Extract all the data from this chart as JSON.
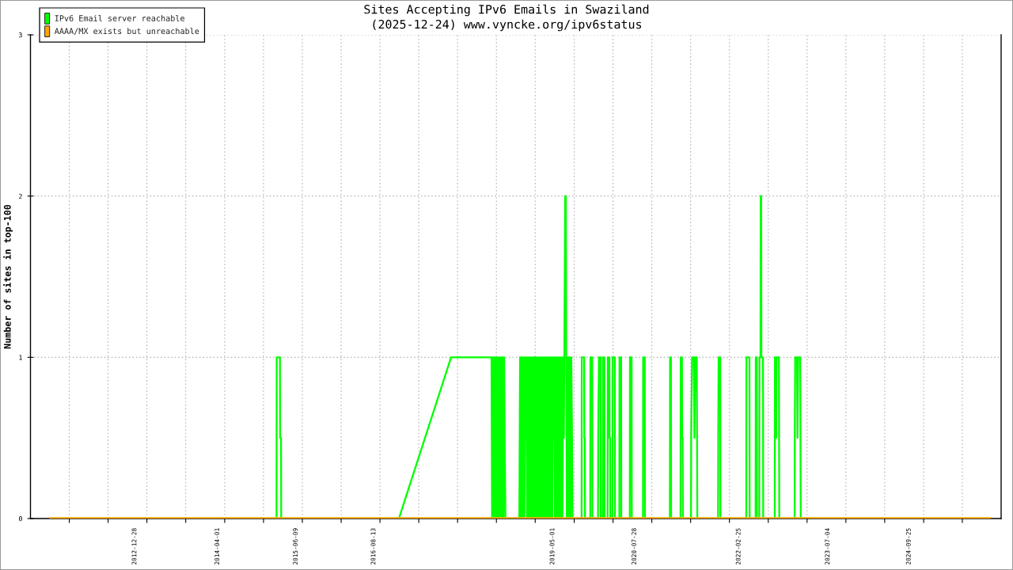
{
  "chart_data": {
    "type": "line",
    "title": "Sites Accepting IPv6 Emails in Swaziland",
    "subtitle": "(2025-12-24) www.vyncke.org/ipv6status",
    "ylabel": "Number of sites in top-100",
    "xlim": [
      "2011-05-31",
      "2026-02-18"
    ],
    "xticks": [
      {
        "value": "2012-01-01",
        "label": null
      },
      {
        "value": "2012-08-03",
        "label": null
      },
      "2012-12-28",
      {
        "value": "2013-03-06",
        "label": null
      },
      {
        "value": "2013-10-07",
        "label": null
      },
      "2014-04-01",
      {
        "value": "2014-05-11",
        "label": null
      },
      {
        "value": "2014-12-12",
        "label": null
      },
      "2015-06-09",
      {
        "value": "2015-07-15",
        "label": null
      },
      {
        "value": "2016-02-15",
        "label": null
      },
      "2016-08-13",
      {
        "value": "2016-09-17",
        "label": null
      },
      {
        "value": "2017-04-20",
        "label": null
      },
      {
        "value": "2017-11-21",
        "label": null
      },
      {
        "value": "2018-06-24",
        "label": null
      },
      {
        "value": "2019-01-25",
        "label": null
      },
      "2019-05-01",
      {
        "value": "2019-08-29",
        "label": null
      },
      {
        "value": "2020-03-31",
        "label": null
      },
      "2020-07-28",
      {
        "value": "2020-11-01",
        "label": null
      },
      {
        "value": "2021-06-04",
        "label": null
      },
      {
        "value": "2022-01-05",
        "label": null
      },
      "2022-02-25",
      {
        "value": "2022-08-08",
        "label": null
      },
      {
        "value": "2023-03-11",
        "label": null
      },
      "2023-07-04",
      {
        "value": "2023-10-12",
        "label": null
      },
      {
        "value": "2024-05-14",
        "label": null
      },
      "2024-09-25",
      {
        "value": "2024-12-16",
        "label": null
      },
      {
        "value": "2025-07-18",
        "label": null
      }
    ],
    "ylim": [
      0,
      3
    ],
    "yticks": [
      0,
      1,
      2,
      3
    ],
    "grid": true,
    "legend": "top left",
    "line_style": "solid",
    "series": [
      {
        "name": "IPv6 Email server reachable",
        "color": "#00ff00",
        "x": [
          "2015-02-22",
          "2015-02-23",
          "2015-03-13",
          "2015-03-14",
          "2015-03-19",
          "2015-03-20",
          "2016-01-01",
          "2016-12-31",
          "2017-10-16",
          "2018-05-28",
          "2018-05-31",
          "2018-06-04",
          "2018-06-07",
          "2018-06-11",
          "2018-06-14",
          "2018-06-18",
          "2018-06-21",
          "2018-06-25",
          "2018-06-28",
          "2018-07-02",
          "2018-07-05",
          "2018-07-09",
          "2018-07-12",
          "2018-07-16",
          "2018-07-19",
          "2018-07-23",
          "2018-07-26",
          "2018-07-30",
          "2018-08-02",
          "2018-08-06",
          "2018-08-09",
          "2018-08-13",
          "2018-09-15",
          "2018-10-29",
          "2018-10-31",
          "2018-11-02",
          "2018-11-05",
          "2018-11-09",
          "2018-11-12",
          "2018-11-16",
          "2018-11-19",
          "2018-11-23",
          "2018-11-26",
          "2018-11-30",
          "2018-12-03",
          "2018-12-07",
          "2018-12-10",
          "2018-12-14",
          "2018-12-17",
          "2018-12-21",
          "2018-12-24",
          "2018-12-28",
          "2018-12-31",
          "2019-01-04",
          "2019-01-07",
          "2019-01-11",
          "2019-01-14",
          "2019-01-18",
          "2019-01-21",
          "2019-01-25",
          "2019-01-28",
          "2019-02-01",
          "2019-02-04",
          "2019-02-08",
          "2019-02-11",
          "2019-02-15",
          "2019-02-19",
          "2019-02-23",
          "2019-02-26",
          "2019-03-02",
          "2019-03-05",
          "2019-03-09",
          "2019-03-12",
          "2019-03-16",
          "2019-03-19",
          "2019-03-23",
          "2019-03-26",
          "2019-03-30",
          "2019-04-02",
          "2019-04-06",
          "2019-04-09",
          "2019-04-13",
          "2019-04-16",
          "2019-04-20",
          "2019-04-23",
          "2019-04-27",
          "2019-04-30",
          "2019-05-04",
          "2019-05-07",
          "2019-05-11",
          "2019-05-14",
          "2019-05-18",
          "2019-05-21",
          "2019-05-25",
          "2019-05-28",
          "2019-06-01",
          "2019-06-04",
          "2019-06-08",
          "2019-06-11",
          "2019-06-15",
          "2019-06-18",
          "2019-06-22",
          "2019-06-25",
          "2019-06-29",
          "2019-07-03",
          "2019-07-10",
          "2019-07-14",
          "2019-07-16",
          "2019-07-19",
          "2019-07-23",
          "2019-07-26",
          "2019-07-30",
          "2019-08-02",
          "2019-08-06",
          "2019-08-09",
          "2019-08-13",
          "2019-08-17",
          "2019-08-20",
          "2019-09-15",
          "2019-10-09",
          "2019-10-10",
          "2019-10-23",
          "2019-10-24",
          "2019-10-27",
          "2019-10-28",
          "2019-11-10",
          "2019-11-26",
          "2019-11-27",
          "2019-12-07",
          "2019-12-08",
          "2019-12-20",
          "2020-01-08",
          "2020-01-09",
          "2020-01-13",
          "2020-01-22",
          "2020-01-23",
          "2020-01-29",
          "2020-02-03",
          "2020-02-04",
          "2020-02-12",
          "2020-02-13",
          "2020-02-20",
          "2020-03-01",
          "2020-03-02",
          "2020-03-11",
          "2020-03-12",
          "2020-03-15",
          "2020-03-16",
          "2020-03-22",
          "2020-03-28",
          "2020-03-29",
          "2020-04-10",
          "2020-04-11",
          "2020-04-22",
          "2020-05-05",
          "2020-05-06",
          "2020-05-15",
          "2020-05-16",
          "2020-06-01",
          "2020-07-02",
          "2020-07-03",
          "2020-07-12",
          "2020-07-13",
          "2020-08-10",
          "2020-09-13",
          "2020-09-14",
          "2020-09-23",
          "2020-09-24",
          "2020-11-15",
          "2021-02-09",
          "2021-02-10",
          "2021-02-15",
          "2021-02-16",
          "2021-03-10",
          "2021-04-09",
          "2021-04-10",
          "2021-04-17",
          "2021-04-18",
          "2021-04-21",
          "2021-04-22",
          "2021-05-15",
          "2021-06-06",
          "2021-06-07",
          "2021-06-12",
          "2021-06-22",
          "2021-06-25",
          "2021-06-30",
          "2021-07-08",
          "2021-07-11",
          "2021-08-15",
          "2021-11-03",
          "2021-11-04",
          "2021-11-06",
          "2021-11-15",
          "2021-11-16",
          "2022-01-15",
          "2022-04-08",
          "2022-04-09",
          "2022-04-26",
          "2022-04-27",
          "2022-05-10",
          "2022-05-30",
          "2022-05-31",
          "2022-06-05",
          "2022-06-06",
          "2022-06-12",
          "2022-06-19",
          "2022-06-20",
          "2022-06-26",
          "2022-06-27",
          "2022-06-30",
          "2022-07-01",
          "2022-07-10",
          "2022-07-11",
          "2022-08-01",
          "2022-09-13",
          "2022-09-14",
          "2022-09-19",
          "2022-09-21",
          "2022-09-23",
          "2022-10-06",
          "2022-10-08",
          "2022-11-15",
          "2023-01-01",
          "2023-01-02",
          "2023-01-04",
          "2023-01-14",
          "2023-01-17",
          "2023-01-21",
          "2023-02-01",
          "2023-02-04"
        ],
        "values": [
          0,
          1,
          1,
          0.5,
          0.5,
          0,
          null,
          0,
          1,
          1,
          0,
          1,
          0,
          1,
          0,
          1,
          0,
          1,
          0,
          1,
          0,
          1,
          0,
          1,
          0,
          1,
          0,
          1,
          0,
          1,
          0.5,
          0,
          null,
          0,
          0.5,
          1,
          0,
          1,
          0,
          1,
          0,
          1,
          0,
          1,
          0.5,
          1,
          0,
          1,
          0,
          1,
          0,
          1,
          0,
          1,
          0,
          1,
          0,
          1,
          0,
          1,
          0,
          1,
          0,
          1,
          0,
          1,
          0,
          1,
          0,
          1,
          0,
          1,
          0,
          1,
          0,
          1,
          0,
          1,
          0,
          1,
          0,
          1,
          0,
          1,
          0,
          1,
          0,
          1,
          0.5,
          1,
          0,
          1,
          0,
          1,
          0,
          1,
          0,
          1,
          0,
          1,
          0,
          1,
          0,
          1,
          0.5,
          2,
          2,
          1,
          0,
          1,
          0,
          1,
          0,
          1,
          0,
          1,
          0.5,
          0,
          null,
          0,
          1,
          1,
          0.5,
          0.5,
          0,
          null,
          0,
          1,
          1,
          0,
          null,
          0,
          0.5,
          1,
          1,
          0,
          null,
          0,
          1,
          1,
          0,
          null,
          0,
          1,
          1,
          0.5,
          0.5,
          0,
          null,
          0,
          1,
          1,
          0,
          null,
          0,
          1,
          1,
          0,
          null,
          0,
          1,
          1,
          0,
          null,
          0,
          1,
          1,
          0,
          null,
          0,
          1,
          1,
          0,
          null,
          0,
          1,
          1,
          0.5,
          0.5,
          0,
          null,
          0,
          0.5,
          1,
          1,
          0.5,
          1,
          1,
          0,
          null,
          0,
          0.5,
          1,
          1,
          0,
          null,
          0,
          1,
          1,
          0,
          null,
          0,
          1,
          1,
          0,
          null,
          0,
          1,
          1,
          2,
          2,
          1,
          1,
          0,
          null,
          0,
          1,
          1,
          0.5,
          1,
          1,
          0,
          null,
          0,
          0.5,
          1,
          1,
          0.5,
          1,
          1,
          0
        ]
      },
      {
        "name": "AAAA/MX exists but unreachable",
        "color": "#ffa500",
        "x": [
          "2011-09-11",
          "2025-12-24"
        ],
        "values": [
          0,
          0
        ]
      }
    ]
  }
}
